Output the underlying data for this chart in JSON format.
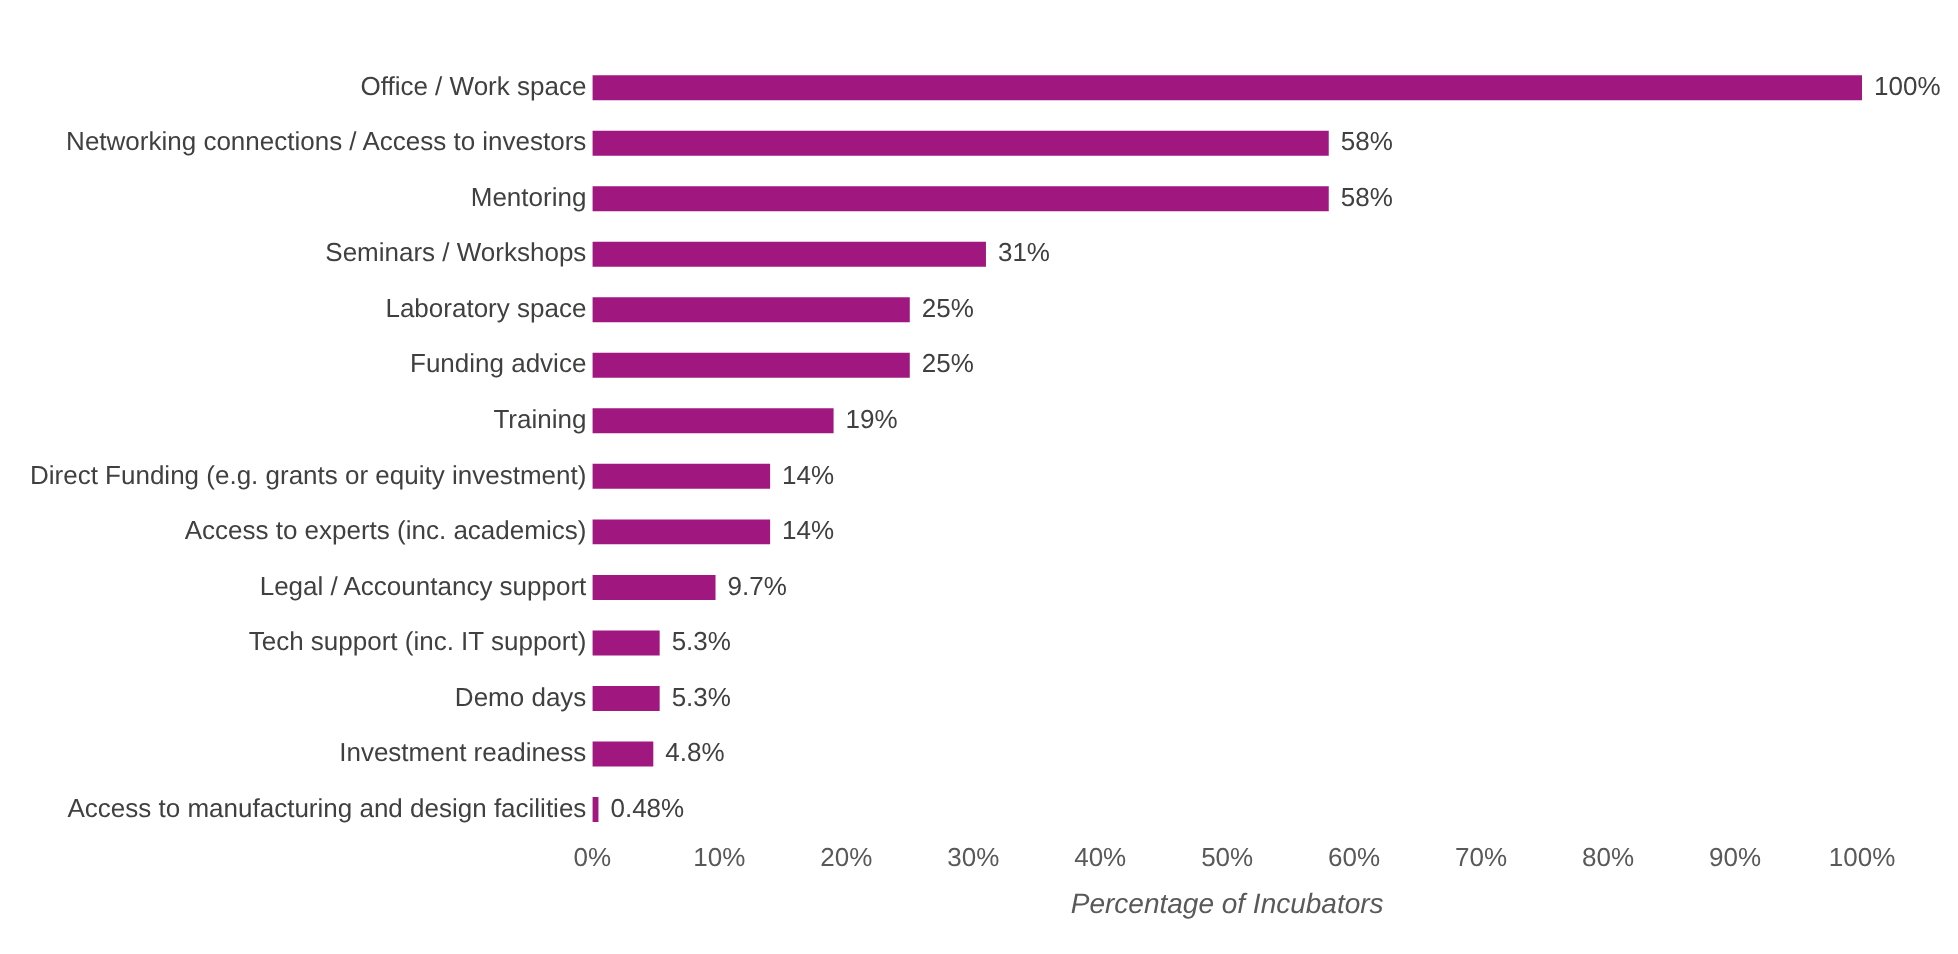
{
  "chart_data": {
    "type": "bar",
    "orientation": "horizontal",
    "xlabel": "Percentage of Incubators",
    "categories": [
      "Office / Work space",
      "Networking connections / Access to investors",
      "Mentoring",
      "Seminars / Workshops",
      "Laboratory space",
      "Funding advice",
      "Training",
      "Direct Funding (e.g. grants or equity investment)",
      "Access to experts (inc. academics)",
      "Legal / Accountancy support",
      "Tech support (inc. IT support)",
      "Demo days",
      "Investment readiness",
      "Access to manufacturing and design facilities"
    ],
    "values": [
      100,
      58,
      58,
      31,
      25,
      25,
      19,
      14,
      14,
      9.7,
      5.3,
      5.3,
      4.8,
      0.48
    ],
    "value_labels": [
      "100%",
      "58%",
      "58%",
      "31%",
      "25%",
      "25%",
      "19%",
      "14%",
      "14%",
      "9.7%",
      "5.3%",
      "5.3%",
      "4.8%",
      "0.48%"
    ],
    "color": "#a0177f",
    "xlim": [
      0,
      100
    ],
    "xticks": [
      {
        "value": 0,
        "label": "0%"
      },
      {
        "value": 10,
        "label": "10%"
      },
      {
        "value": 20,
        "label": "20%"
      },
      {
        "value": 30,
        "label": "30%"
      },
      {
        "value": 40,
        "label": "40%"
      },
      {
        "value": 50,
        "label": "50%"
      },
      {
        "value": 60,
        "label": "60%"
      },
      {
        "value": 70,
        "label": "70%"
      },
      {
        "value": 80,
        "label": "80%"
      },
      {
        "value": 90,
        "label": "90%"
      },
      {
        "value": 100,
        "label": "100%"
      }
    ],
    "grid": false,
    "legend": false
  }
}
